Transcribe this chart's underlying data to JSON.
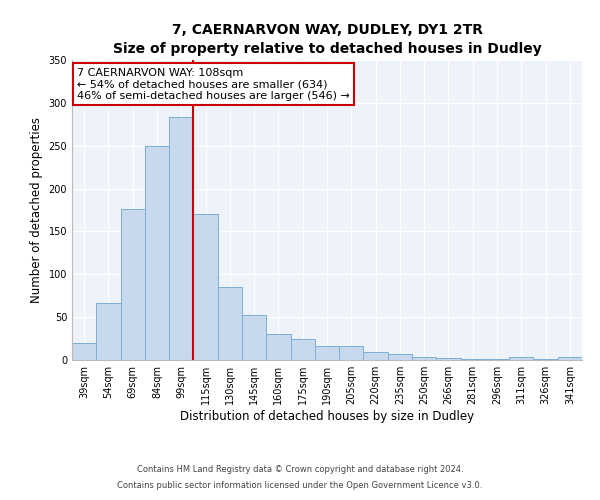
{
  "title": "7, CAERNARVON WAY, DUDLEY, DY1 2TR",
  "subtitle": "Size of property relative to detached houses in Dudley",
  "xlabel": "Distribution of detached houses by size in Dudley",
  "ylabel": "Number of detached properties",
  "categories": [
    "39sqm",
    "54sqm",
    "69sqm",
    "84sqm",
    "99sqm",
    "115sqm",
    "130sqm",
    "145sqm",
    "160sqm",
    "175sqm",
    "190sqm",
    "205sqm",
    "220sqm",
    "235sqm",
    "250sqm",
    "266sqm",
    "281sqm",
    "296sqm",
    "311sqm",
    "326sqm",
    "341sqm"
  ],
  "values": [
    20,
    67,
    176,
    250,
    283,
    170,
    85,
    52,
    30,
    24,
    16,
    16,
    9,
    7,
    3,
    2,
    1,
    1,
    3,
    1,
    3
  ],
  "bar_color": "#c8d9ee",
  "bar_edge_color": "#7bafd4",
  "vline_x_idx": 5,
  "vline_color": "#cc0000",
  "annotation_title": "7 CAERNARVON WAY: 108sqm",
  "annotation_line1": "← 54% of detached houses are smaller (634)",
  "annotation_line2": "46% of semi-detached houses are larger (546) →",
  "annotation_box_edgecolor": "#cc0000",
  "ylim": [
    0,
    350
  ],
  "yticks": [
    0,
    50,
    100,
    150,
    200,
    250,
    300,
    350
  ],
  "footer1": "Contains HM Land Registry data © Crown copyright and database right 2024.",
  "footer2": "Contains public sector information licensed under the Open Government Licence v3.0.",
  "bg_color": "#ffffff",
  "plot_bg_color": "#eef3f9",
  "grid_color": "#ffffff",
  "title_fontsize": 10,
  "subtitle_fontsize": 9,
  "axis_label_fontsize": 8.5,
  "tick_fontsize": 7,
  "annotation_fontsize": 8,
  "footer_fontsize": 6
}
